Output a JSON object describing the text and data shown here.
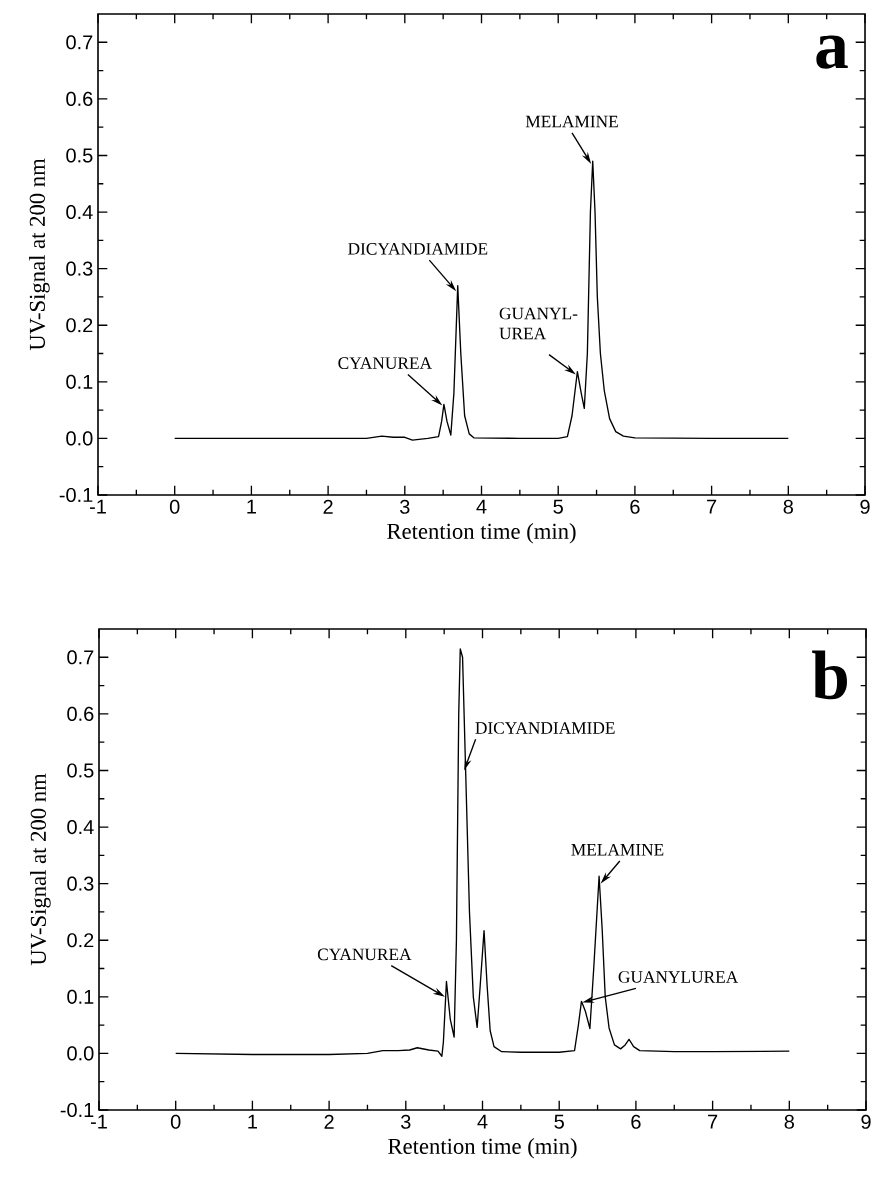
{
  "chart_data": [
    {
      "type": "line",
      "xlabel": "Retention time (min)",
      "ylabel": "UV-Signal at 200 nm",
      "xlim": [
        -1,
        9
      ],
      "xticks": [
        -1,
        0,
        1,
        2,
        3,
        4,
        5,
        6,
        7,
        8,
        9
      ],
      "ylim": [
        -0.1,
        0.75
      ],
      "yticks": [
        -0.1,
        {
          "value": 0,
          "label": "0.0"
        },
        0.1,
        0.2,
        0.3,
        0.4,
        0.5,
        0.6,
        0.7
      ],
      "color": "#000000",
      "line_style": "solid",
      "x": [
        0,
        1,
        2,
        2.5,
        2.7,
        2.85,
        3.0,
        3.1,
        3.3,
        3.44,
        3.48,
        3.51,
        3.55,
        3.6,
        3.64,
        3.69,
        3.73,
        3.78,
        3.84,
        3.9,
        4.5,
        5.0,
        5.12,
        5.18,
        5.25,
        5.3,
        5.34,
        5.38,
        5.42,
        5.45,
        5.48,
        5.51,
        5.55,
        5.6,
        5.67,
        5.75,
        5.85,
        6,
        7,
        8
      ],
      "values": [
        0,
        0,
        0,
        0,
        0.004,
        0.002,
        0.002,
        -0.003,
        0,
        0.003,
        0.03,
        0.06,
        0.03,
        0.006,
        0.08,
        0.27,
        0.15,
        0.04,
        0.008,
        0.001,
        0,
        0,
        0.003,
        0.04,
        0.118,
        0.08,
        0.053,
        0.15,
        0.4,
        0.49,
        0.4,
        0.25,
        0.15,
        0.085,
        0.035,
        0.012,
        0.004,
        0.001,
        0,
        0
      ],
      "annotations": [
        "a",
        {
          "text": "CYANUREA",
          "x": 3.49,
          "y": 0.058
        },
        {
          "text": "DICYANDIAMIDE",
          "x": 3.67,
          "y": 0.26
        },
        {
          "text": "GUANYL-UREA",
          "x": 5.23,
          "y": 0.113
        },
        {
          "text": "MELAMINE",
          "x": 5.43,
          "y": 0.485
        }
      ]
    },
    {
      "type": "line",
      "xlabel": "Retention time (min)",
      "ylabel": "UV-Signal at 200 nm",
      "xlim": [
        -1,
        9
      ],
      "xticks": [
        -1,
        0,
        1,
        2,
        3,
        4,
        5,
        6,
        7,
        8,
        9
      ],
      "ylim": [
        -0.1,
        0.75
      ],
      "yticks": [
        -0.1,
        {
          "value": 0,
          "label": "0.0"
        },
        0.1,
        0.2,
        0.3,
        0.4,
        0.5,
        0.6,
        0.7
      ],
      "color": "#000000",
      "line_style": "solid",
      "x": [
        0,
        1,
        2,
        2.5,
        2.7,
        2.9,
        3.05,
        3.15,
        3.3,
        3.42,
        3.47,
        3.49,
        3.53,
        3.58,
        3.63,
        3.66,
        3.69,
        3.71,
        3.74,
        3.78,
        3.83,
        3.88,
        3.93,
        3.97,
        4.02,
        4.06,
        4.1,
        4.15,
        4.25,
        4.5,
        5.0,
        5.2,
        5.25,
        5.29,
        5.34,
        5.4,
        5.45,
        5.52,
        5.56,
        5.6,
        5.65,
        5.72,
        5.8,
        5.86,
        5.91,
        5.97,
        6.05,
        6.5,
        7,
        8
      ],
      "values": [
        0,
        -0.002,
        -0.002,
        0,
        0.005,
        0.005,
        0.006,
        0.01,
        0.006,
        0.004,
        -0.005,
        0.02,
        0.127,
        0.06,
        0.029,
        0.2,
        0.6,
        0.715,
        0.7,
        0.5,
        0.25,
        0.1,
        0.046,
        0.12,
        0.217,
        0.12,
        0.04,
        0.012,
        0.003,
        0.002,
        0.002,
        0.005,
        0.05,
        0.092,
        0.075,
        0.044,
        0.15,
        0.313,
        0.22,
        0.1,
        0.045,
        0.015,
        0.008,
        0.015,
        0.025,
        0.012,
        0.005,
        0.003,
        0.003,
        0.004
      ],
      "annotations": [
        "b",
        {
          "text": "CYANUREA",
          "x": 3.51,
          "y": 0.1
        },
        {
          "text": "DICYANDIAMIDE",
          "x": 3.76,
          "y": 0.5
        },
        {
          "text": "MELAMINE",
          "x": 5.54,
          "y": 0.3
        },
        {
          "text": "GUANYLUREA",
          "x": 5.3,
          "y": 0.09
        }
      ]
    }
  ]
}
